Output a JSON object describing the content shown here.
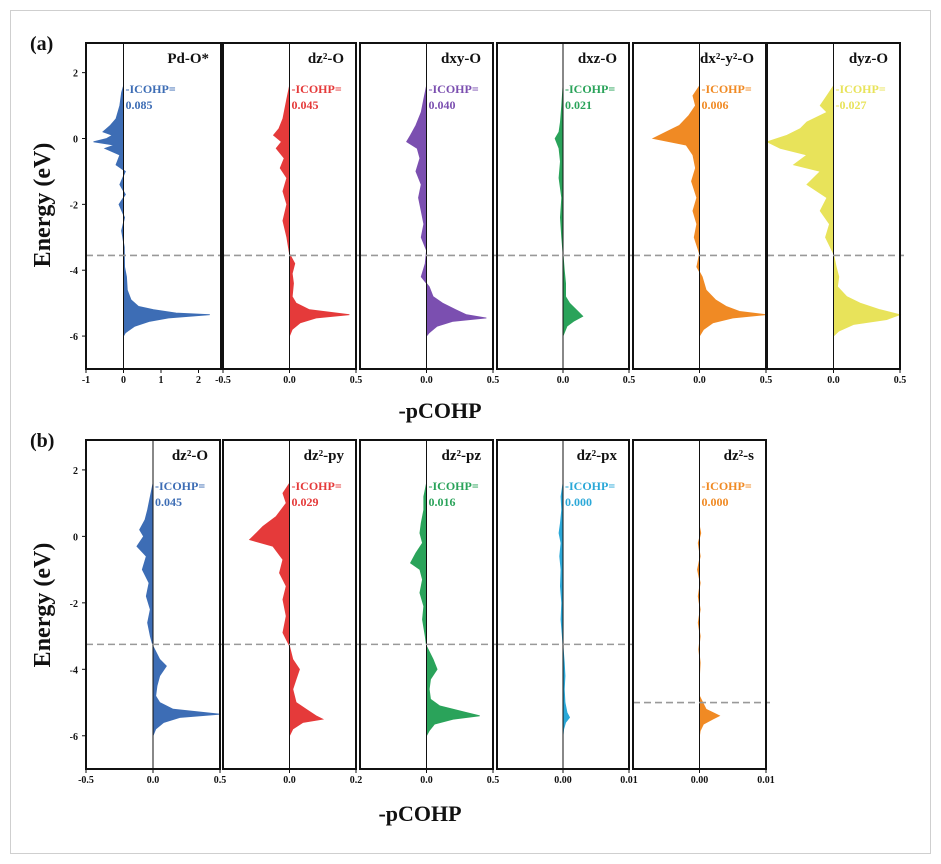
{
  "figure": {
    "panel_a_label": "(a)",
    "panel_b_label": "(b)",
    "xlabel": "-pCOHP",
    "ylabel": "Energy (eV)",
    "icohp_prefix": "-ICOHP="
  },
  "colors": {
    "blue": "#3d6db5",
    "red": "#e53a3a",
    "purple": "#7b4fb0",
    "green": "#2aa35a",
    "orange": "#f08a24",
    "yellow": "#e8e35a",
    "cyan": "#2aa8d8"
  },
  "chart_data": [
    {
      "type": "area",
      "panel": "a",
      "title": "Pd-O*",
      "icohp": "0.085",
      "color": "blue",
      "xlim": [
        -1,
        2.6
      ],
      "xticks": [
        "-1",
        "0",
        "1",
        "2"
      ],
      "ylim": [
        -7,
        2.9
      ],
      "yticks": [
        "2",
        "0",
        "-2",
        "-4",
        "-6"
      ],
      "fermi": -3.55,
      "curve": [
        [
          1.6,
          0
        ],
        [
          1.4,
          -0.05
        ],
        [
          1.0,
          -0.1
        ],
        [
          0.6,
          -0.2
        ],
        [
          0.4,
          -0.35
        ],
        [
          0.2,
          -0.55
        ],
        [
          0.1,
          -0.3
        ],
        [
          0,
          -0.45
        ],
        [
          -0.1,
          -0.8
        ],
        [
          -0.2,
          -0.25
        ],
        [
          -0.3,
          -0.5
        ],
        [
          -0.5,
          -0.1
        ],
        [
          -0.8,
          -0.2
        ],
        [
          -1.0,
          0.05
        ],
        [
          -1.4,
          -0.1
        ],
        [
          -1.7,
          0.05
        ],
        [
          -2.0,
          -0.12
        ],
        [
          -2.4,
          0.03
        ],
        [
          -2.8,
          -0.05
        ],
        [
          -3.3,
          0.02
        ],
        [
          -3.9,
          0.03
        ],
        [
          -4.2,
          0.08
        ],
        [
          -4.6,
          0.1
        ],
        [
          -4.9,
          0.2
        ],
        [
          -5.1,
          0.4
        ],
        [
          -5.2,
          0.8
        ],
        [
          -5.3,
          1.4
        ],
        [
          -5.35,
          2.3
        ],
        [
          -5.45,
          1.2
        ],
        [
          -5.55,
          0.7
        ],
        [
          -5.7,
          0.3
        ],
        [
          -5.9,
          0.05
        ],
        [
          -6.0,
          0
        ]
      ]
    },
    {
      "type": "area",
      "panel": "a",
      "title": "dz²-O",
      "icohp": "0.045",
      "color": "red",
      "xlim": [
        -0.5,
        0.5
      ],
      "xticks": [
        "-0.5",
        "0.0",
        "0.5"
      ],
      "ylim": [
        -7,
        2.9
      ],
      "yticks": [],
      "fermi": -3.55,
      "curve": [
        [
          1.6,
          0
        ],
        [
          1.2,
          -0.02
        ],
        [
          0.6,
          -0.05
        ],
        [
          0.3,
          -0.08
        ],
        [
          0.1,
          -0.12
        ],
        [
          -0.1,
          -0.06
        ],
        [
          -0.3,
          -0.1
        ],
        [
          -0.6,
          -0.04
        ],
        [
          -0.9,
          -0.07
        ],
        [
          -1.2,
          -0.02
        ],
        [
          -1.6,
          -0.05
        ],
        [
          -2.0,
          -0.02
        ],
        [
          -2.5,
          -0.05
        ],
        [
          -3.0,
          -0.02
        ],
        [
          -3.5,
          0
        ],
        [
          -3.8,
          0.04
        ],
        [
          -4.1,
          0.02
        ],
        [
          -4.4,
          0.03
        ],
        [
          -4.8,
          0.02
        ],
        [
          -5.0,
          0.05
        ],
        [
          -5.2,
          0.15
        ],
        [
          -5.35,
          0.45
        ],
        [
          -5.45,
          0.2
        ],
        [
          -5.6,
          0.08
        ],
        [
          -5.8,
          0.02
        ],
        [
          -6.0,
          0
        ]
      ]
    },
    {
      "type": "area",
      "panel": "a",
      "title": "dxy-O",
      "icohp": "0.040",
      "color": "purple",
      "xlim": [
        -0.5,
        0.5
      ],
      "xticks": [
        "0.0",
        "0.5"
      ],
      "ylim": [
        -7,
        2.9
      ],
      "yticks": [],
      "fermi": -3.55,
      "curve": [
        [
          1.6,
          0
        ],
        [
          1.2,
          -0.02
        ],
        [
          0.8,
          -0.04
        ],
        [
          0.4,
          -0.08
        ],
        [
          0.1,
          -0.12
        ],
        [
          -0.1,
          -0.15
        ],
        [
          -0.3,
          -0.07
        ],
        [
          -0.6,
          -0.05
        ],
        [
          -1.0,
          -0.08
        ],
        [
          -1.4,
          -0.04
        ],
        [
          -1.8,
          -0.06
        ],
        [
          -2.2,
          -0.04
        ],
        [
          -2.6,
          -0.02
        ],
        [
          -3.0,
          -0.04
        ],
        [
          -3.4,
          0
        ],
        [
          -3.8,
          -0.01
        ],
        [
          -4.2,
          -0.04
        ],
        [
          -4.5,
          0.02
        ],
        [
          -4.8,
          0.05
        ],
        [
          -5.0,
          0.12
        ],
        [
          -5.2,
          0.22
        ],
        [
          -5.35,
          0.3
        ],
        [
          -5.45,
          0.45
        ],
        [
          -5.55,
          0.2
        ],
        [
          -5.7,
          0.08
        ],
        [
          -5.9,
          0.02
        ],
        [
          -6.0,
          0
        ]
      ]
    },
    {
      "type": "area",
      "panel": "a",
      "title": "dxz-O",
      "icohp": "0.021",
      "color": "green",
      "xlim": [
        -0.5,
        0.5
      ],
      "xticks": [
        "0.0",
        "0.5"
      ],
      "ylim": [
        -7,
        2.9
      ],
      "yticks": [],
      "fermi": -3.55,
      "curve": [
        [
          1.6,
          0
        ],
        [
          1.0,
          -0.01
        ],
        [
          0.5,
          -0.02
        ],
        [
          0.2,
          -0.03
        ],
        [
          0,
          -0.06
        ],
        [
          -0.3,
          -0.03
        ],
        [
          -0.7,
          -0.02
        ],
        [
          -1.2,
          -0.03
        ],
        [
          -1.8,
          -0.01
        ],
        [
          -2.4,
          -0.02
        ],
        [
          -3.0,
          -0.01
        ],
        [
          -3.5,
          0
        ],
        [
          -4.0,
          0.01
        ],
        [
          -4.4,
          0.02
        ],
        [
          -4.8,
          0.02
        ],
        [
          -5.0,
          0.05
        ],
        [
          -5.2,
          0.1
        ],
        [
          -5.4,
          0.15
        ],
        [
          -5.55,
          0.08
        ],
        [
          -5.7,
          0.03
        ],
        [
          -5.9,
          0.01
        ],
        [
          -6.0,
          0
        ]
      ]
    },
    {
      "type": "area",
      "panel": "a",
      "title": "dx²-y²-O",
      "icohp": "0.006",
      "color": "orange",
      "xlim": [
        -0.5,
        0.5
      ],
      "xticks": [
        "0.0",
        "0.5"
      ],
      "ylim": [
        -7,
        2.9
      ],
      "yticks": [],
      "fermi": -3.55,
      "curve": [
        [
          1.6,
          0
        ],
        [
          1.3,
          -0.05
        ],
        [
          1.0,
          -0.03
        ],
        [
          0.7,
          -0.08
        ],
        [
          0.4,
          -0.15
        ],
        [
          0.2,
          -0.25
        ],
        [
          0.0,
          -0.35
        ],
        [
          -0.2,
          -0.1
        ],
        [
          -0.5,
          -0.05
        ],
        [
          -0.9,
          -0.03
        ],
        [
          -1.3,
          -0.06
        ],
        [
          -1.8,
          -0.02
        ],
        [
          -2.2,
          -0.05
        ],
        [
          -2.6,
          -0.02
        ],
        [
          -3.0,
          -0.04
        ],
        [
          -3.5,
          0
        ],
        [
          -3.9,
          -0.02
        ],
        [
          -4.2,
          0.02
        ],
        [
          -4.6,
          0.05
        ],
        [
          -4.9,
          0.12
        ],
        [
          -5.1,
          0.2
        ],
        [
          -5.25,
          0.3
        ],
        [
          -5.35,
          0.5
        ],
        [
          -5.45,
          0.25
        ],
        [
          -5.6,
          0.1
        ],
        [
          -5.8,
          0.03
        ],
        [
          -6.0,
          0
        ]
      ]
    },
    {
      "type": "area",
      "panel": "a",
      "title": "dyz-O",
      "icohp": "-0.027",
      "color": "yellow",
      "xlim": [
        -0.5,
        0.5
      ],
      "xticks": [
        "0.0",
        "0.5"
      ],
      "ylim": [
        -7,
        2.9
      ],
      "yticks": [],
      "fermi": -3.55,
      "curve": [
        [
          1.6,
          0
        ],
        [
          1.3,
          -0.05
        ],
        [
          1.0,
          -0.1
        ],
        [
          0.8,
          -0.05
        ],
        [
          0.5,
          -0.2
        ],
        [
          0.3,
          -0.25
        ],
        [
          0.1,
          -0.35
        ],
        [
          -0.1,
          -0.5
        ],
        [
          -0.3,
          -0.4
        ],
        [
          -0.5,
          -0.2
        ],
        [
          -0.8,
          -0.3
        ],
        [
          -1.0,
          -0.1
        ],
        [
          -1.4,
          -0.2
        ],
        [
          -1.8,
          -0.05
        ],
        [
          -2.2,
          -0.1
        ],
        [
          -2.6,
          -0.03
        ],
        [
          -3.0,
          -0.06
        ],
        [
          -3.5,
          0
        ],
        [
          -3.9,
          0.02
        ],
        [
          -4.2,
          0.04
        ],
        [
          -4.5,
          0.03
        ],
        [
          -4.8,
          0.1
        ],
        [
          -5.0,
          0.2
        ],
        [
          -5.2,
          0.35
        ],
        [
          -5.35,
          0.5
        ],
        [
          -5.5,
          0.4
        ],
        [
          -5.65,
          0.15
        ],
        [
          -5.85,
          0.04
        ],
        [
          -6.0,
          0
        ]
      ]
    },
    {
      "type": "area",
      "panel": "b",
      "title": "dz²-O",
      "icohp": "0.045",
      "color": "blue",
      "xlim": [
        -0.5,
        0.5
      ],
      "xticks": [
        "-0.5",
        "0.0",
        "0.5"
      ],
      "ylim": [
        -7,
        2.9
      ],
      "yticks": [
        "2",
        "0",
        "-2",
        "-4",
        "-6"
      ],
      "fermi": -3.25,
      "curve": [
        [
          1.6,
          0
        ],
        [
          1.2,
          -0.02
        ],
        [
          0.8,
          -0.04
        ],
        [
          0.5,
          -0.06
        ],
        [
          0.2,
          -0.1
        ],
        [
          0,
          -0.07
        ],
        [
          -0.3,
          -0.12
        ],
        [
          -0.6,
          -0.05
        ],
        [
          -1.0,
          -0.08
        ],
        [
          -1.4,
          -0.03
        ],
        [
          -1.8,
          -0.05
        ],
        [
          -2.2,
          -0.02
        ],
        [
          -2.6,
          -0.04
        ],
        [
          -3.0,
          -0.02
        ],
        [
          -3.3,
          0
        ],
        [
          -3.7,
          0.05
        ],
        [
          -3.9,
          0.1
        ],
        [
          -4.2,
          0.05
        ],
        [
          -4.5,
          0.03
        ],
        [
          -4.8,
          0.02
        ],
        [
          -5.0,
          0.05
        ],
        [
          -5.2,
          0.15
        ],
        [
          -5.35,
          0.5
        ],
        [
          -5.45,
          0.2
        ],
        [
          -5.6,
          0.08
        ],
        [
          -5.8,
          0.02
        ],
        [
          -6.0,
          0
        ]
      ]
    },
    {
      "type": "area",
      "panel": "b",
      "title": "dz²-py",
      "icohp": "0.029",
      "color": "red",
      "xlim": [
        -0.2,
        0.2
      ],
      "xticks": [
        "0.0",
        "0.2"
      ],
      "ylim": [
        -7,
        2.9
      ],
      "yticks": [],
      "fermi": -3.25,
      "curve": [
        [
          1.6,
          0
        ],
        [
          1.3,
          -0.02
        ],
        [
          1.0,
          -0.01
        ],
        [
          0.6,
          -0.04
        ],
        [
          0.3,
          -0.08
        ],
        [
          0.1,
          -0.1
        ],
        [
          -0.1,
          -0.12
        ],
        [
          -0.3,
          -0.05
        ],
        [
          -0.7,
          -0.02
        ],
        [
          -1.1,
          -0.03
        ],
        [
          -1.5,
          -0.01
        ],
        [
          -1.9,
          -0.02
        ],
        [
          -2.4,
          -0.01
        ],
        [
          -2.9,
          -0.02
        ],
        [
          -3.3,
          0
        ],
        [
          -3.7,
          0.01
        ],
        [
          -4.0,
          0.03
        ],
        [
          -4.3,
          0.02
        ],
        [
          -4.6,
          0.01
        ],
        [
          -5.0,
          0.02
        ],
        [
          -5.2,
          0.05
        ],
        [
          -5.4,
          0.08
        ],
        [
          -5.5,
          0.1
        ],
        [
          -5.6,
          0.04
        ],
        [
          -5.8,
          0.01
        ],
        [
          -6.0,
          0
        ]
      ]
    },
    {
      "type": "area",
      "panel": "b",
      "title": "dz²-pz",
      "icohp": "0.016",
      "color": "green",
      "xlim": [
        -0.5,
        0.5
      ],
      "xticks": [
        "0.0",
        "0.5"
      ],
      "ylim": [
        -7,
        2.9
      ],
      "yticks": [],
      "fermi": -3.25,
      "curve": [
        [
          1.6,
          0
        ],
        [
          1.2,
          -0.02
        ],
        [
          0.8,
          -0.02
        ],
        [
          0.4,
          -0.04
        ],
        [
          0.1,
          -0.05
        ],
        [
          -0.2,
          -0.03
        ],
        [
          -0.5,
          -0.08
        ],
        [
          -0.8,
          -0.12
        ],
        [
          -1.0,
          -0.05
        ],
        [
          -1.3,
          -0.03
        ],
        [
          -1.7,
          -0.05
        ],
        [
          -2.1,
          -0.02
        ],
        [
          -2.5,
          -0.03
        ],
        [
          -3.0,
          -0.01
        ],
        [
          -3.3,
          0
        ],
        [
          -3.7,
          0.05
        ],
        [
          -4.0,
          0.08
        ],
        [
          -4.3,
          0.03
        ],
        [
          -4.6,
          0.02
        ],
        [
          -4.9,
          0.03
        ],
        [
          -5.1,
          0.1
        ],
        [
          -5.3,
          0.3
        ],
        [
          -5.4,
          0.4
        ],
        [
          -5.5,
          0.2
        ],
        [
          -5.65,
          0.06
        ],
        [
          -5.85,
          0.02
        ],
        [
          -6.0,
          0
        ]
      ]
    },
    {
      "type": "area",
      "panel": "b",
      "title": "dz²-px",
      "icohp": "0.000",
      "color": "cyan",
      "xlim": [
        -0.01,
        0.01
      ],
      "xticks": [
        "0.00",
        "0.01"
      ],
      "ylim": [
        -7,
        2.9
      ],
      "yticks": [],
      "fermi": -3.25,
      "curve": [
        [
          1.6,
          0
        ],
        [
          1.2,
          -0.0003
        ],
        [
          0.8,
          -0.0002
        ],
        [
          0.4,
          -0.0004
        ],
        [
          0.1,
          -0.0006
        ],
        [
          -0.2,
          -0.0003
        ],
        [
          -0.6,
          -0.0005
        ],
        [
          -1.0,
          -0.0003
        ],
        [
          -1.5,
          -0.0004
        ],
        [
          -2.0,
          -0.0002
        ],
        [
          -2.5,
          -0.0003
        ],
        [
          -3.0,
          -0.0001
        ],
        [
          -3.3,
          0
        ],
        [
          -3.8,
          0.0002
        ],
        [
          -4.2,
          0.0003
        ],
        [
          -4.6,
          0.0002
        ],
        [
          -5.0,
          0.0003
        ],
        [
          -5.3,
          0.0006
        ],
        [
          -5.45,
          0.001
        ],
        [
          -5.6,
          0.0004
        ],
        [
          -5.8,
          0.0001
        ],
        [
          -6.0,
          0
        ]
      ]
    },
    {
      "type": "area",
      "panel": "b",
      "title": "dz²-s",
      "icohp": "0.000",
      "color": "orange",
      "xlim": [
        -0.01,
        0.01
      ],
      "xticks": [
        "0.00",
        "0.01"
      ],
      "ylim": [
        -7,
        2.9
      ],
      "yticks": [],
      "fermi": -5.0,
      "curve": [
        [
          0.3,
          0
        ],
        [
          0.1,
          0.0002
        ],
        [
          -0.2,
          -0.0002
        ],
        [
          -0.6,
          0.0001
        ],
        [
          -1.0,
          -0.0003
        ],
        [
          -1.4,
          0.0001
        ],
        [
          -1.8,
          -0.0002
        ],
        [
          -2.2,
          0.0001
        ],
        [
          -2.6,
          -0.0002
        ],
        [
          -3.0,
          0.0001
        ],
        [
          -3.4,
          -0.0001
        ],
        [
          -3.8,
          0.0001
        ],
        [
          -4.2,
          0
        ],
        [
          -4.8,
          0
        ],
        [
          -5.2,
          0.001
        ],
        [
          -5.4,
          0.003
        ],
        [
          -5.5,
          0.002
        ],
        [
          -5.65,
          0.0006
        ],
        [
          -5.85,
          0.0001
        ],
        [
          -6.0,
          0
        ]
      ]
    }
  ]
}
